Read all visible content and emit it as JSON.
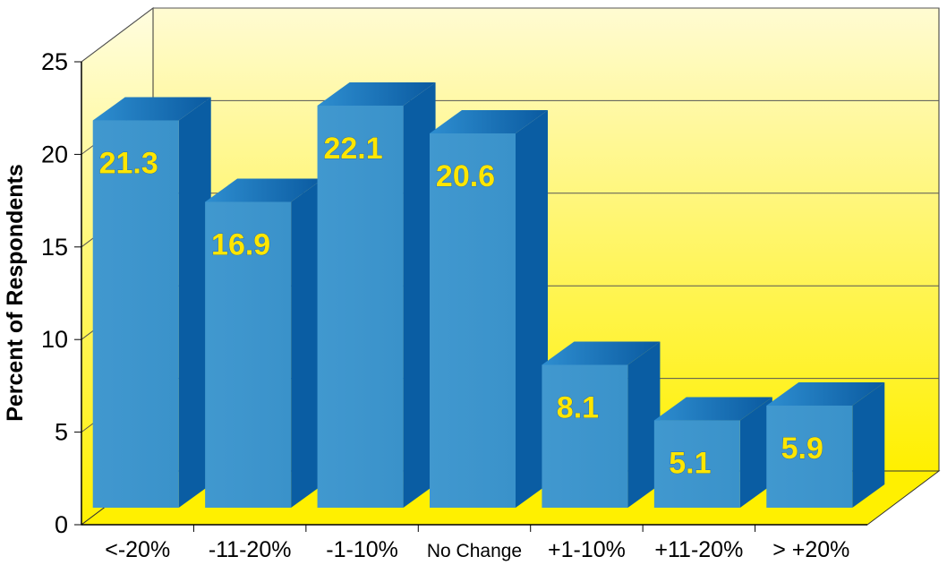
{
  "chart_data": {
    "type": "bar",
    "style": "3d",
    "categories": [
      "<-20%",
      "-11-20%",
      "-1-10%",
      "No Change",
      "+1-10%",
      "+11-20%",
      "> +20%"
    ],
    "values": [
      21.3,
      16.9,
      22.1,
      20.6,
      8.1,
      5.1,
      5.9
    ],
    "data_labels": [
      "21.3",
      "16.9",
      "22.1",
      "20.6",
      "8.1",
      "5.1",
      "5.9"
    ],
    "ylabel": "Percent of Respondents",
    "ylim": [
      0,
      25
    ],
    "yticks": [
      "0",
      "5",
      "10",
      "15",
      "20",
      "25"
    ],
    "grid": true,
    "legend": "none",
    "colors": {
      "bar_front": "#3d95cc",
      "bar_side": "#0a5da3",
      "bar_top": "#1b7cc4",
      "wall_top": "#fffbd0",
      "wall_bottom": "#ffee00",
      "floor": "#fff000",
      "label": "#ffe600"
    }
  }
}
